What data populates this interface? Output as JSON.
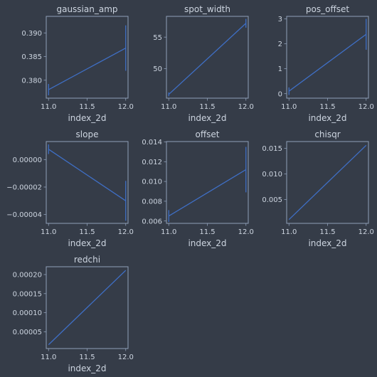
{
  "figure": {
    "background": "#353c48",
    "axes_face": "#353c48",
    "axes_edge": "#8f9fb7",
    "text_color": "#cdd5e0",
    "line_color": "#3f6fc5"
  },
  "chart_data": [
    {
      "type": "line",
      "title": "gaussian_amp",
      "xlabel": "index_2d",
      "ylabel": "",
      "xlim": [
        10.97,
        12.03
      ],
      "ylim": [
        0.3762,
        0.3935
      ],
      "xticks": [
        11.0,
        11.5,
        12.0
      ],
      "xtick_labels": [
        "11.0",
        "11.5",
        "12.0"
      ],
      "yticks": [
        0.38,
        0.385,
        0.39
      ],
      "ytick_labels": [
        "0.380",
        "0.385",
        "0.390"
      ],
      "series": [
        {
          "x": [
            11.0,
            12.0
          ],
          "y": [
            0.378,
            0.3868
          ],
          "yerr": [
            0.0012,
            0.0048
          ]
        }
      ]
    },
    {
      "type": "line",
      "title": "spot_width",
      "xlabel": "index_2d",
      "ylabel": "",
      "xlim": [
        10.97,
        12.03
      ],
      "ylim": [
        45.3,
        58.3
      ],
      "xticks": [
        11.0,
        11.5,
        12.0
      ],
      "xtick_labels": [
        "11.0",
        "11.5",
        "12.0"
      ],
      "yticks": [
        50,
        55
      ],
      "ytick_labels": [
        "50",
        "55"
      ],
      "series": [
        {
          "x": [
            11.0,
            12.0
          ],
          "y": [
            45.9,
            57.2
          ],
          "yerr": [
            0.3,
            0.7
          ]
        }
      ]
    },
    {
      "type": "line",
      "title": "pos_offset",
      "xlabel": "index_2d",
      "ylabel": "",
      "xlim": [
        10.97,
        12.03
      ],
      "ylim": [
        -0.18,
        3.1
      ],
      "xticks": [
        11.0,
        11.5,
        12.0
      ],
      "xtick_labels": [
        "11.0",
        "11.5",
        "12.0"
      ],
      "yticks": [
        0,
        1,
        2,
        3
      ],
      "ytick_labels": [
        "0",
        "1",
        "2",
        "3"
      ],
      "series": [
        {
          "x": [
            11.0,
            12.0
          ],
          "y": [
            0.1,
            2.38
          ],
          "yerr": [
            0.15,
            0.62
          ]
        }
      ]
    },
    {
      "type": "line",
      "title": "slope",
      "xlabel": "index_2d",
      "ylabel": "",
      "xlim": [
        10.97,
        12.03
      ],
      "ylim": [
        -4.64e-05,
        1.31e-05
      ],
      "xticks": [
        11.0,
        11.5,
        12.0
      ],
      "xtick_labels": [
        "11.0",
        "11.5",
        "12.0"
      ],
      "yticks": [
        -4e-05,
        -2e-05,
        0.0
      ],
      "ytick_labels": [
        "−0.00004",
        "−0.00002",
        "0.00000"
      ],
      "series": [
        {
          "x": [
            11.0,
            12.0
          ],
          "y": [
            7.5e-06,
            -3e-05
          ],
          "yerr": [
            3.5e-06,
            1.45e-05
          ]
        }
      ]
    },
    {
      "type": "line",
      "title": "offset",
      "xlabel": "index_2d",
      "ylabel": "",
      "xlim": [
        10.97,
        12.03
      ],
      "ylim": [
        0.00576,
        0.01404
      ],
      "xticks": [
        11.0,
        11.5,
        12.0
      ],
      "xtick_labels": [
        "11.0",
        "11.5",
        "12.0"
      ],
      "yticks": [
        0.006,
        0.008,
        0.01,
        0.012,
        0.014
      ],
      "ytick_labels": [
        "0.006",
        "0.008",
        "0.010",
        "0.012",
        "0.014"
      ],
      "series": [
        {
          "x": [
            11.0,
            12.0
          ],
          "y": [
            0.0065,
            0.0112
          ],
          "yerr": [
            0.0006,
            0.0023
          ]
        }
      ]
    },
    {
      "type": "line",
      "title": "chisqr",
      "xlabel": "index_2d",
      "ylabel": "",
      "xlim": [
        10.97,
        12.03
      ],
      "ylim": [
        0.00036,
        0.01634
      ],
      "xticks": [
        11.0,
        11.5,
        12.0
      ],
      "xtick_labels": [
        "11.0",
        "11.5",
        "12.0"
      ],
      "yticks": [
        0.005,
        0.01,
        0.015
      ],
      "ytick_labels": [
        "0.005",
        "0.010",
        "0.015"
      ],
      "series": [
        {
          "x": [
            11.0,
            12.0
          ],
          "y": [
            0.0011,
            0.0156
          ]
        }
      ]
    },
    {
      "type": "line",
      "title": "redchi",
      "xlabel": "index_2d",
      "ylabel": "",
      "xlim": [
        10.97,
        12.03
      ],
      "ylim": [
        5.9e-06,
        0.0002205
      ],
      "xticks": [
        11.0,
        11.5,
        12.0
      ],
      "xtick_labels": [
        "11.0",
        "11.5",
        "12.0"
      ],
      "yticks": [
        5e-05,
        0.0001,
        0.00015,
        0.0002
      ],
      "ytick_labels": [
        "0.00005",
        "0.00010",
        "0.00015",
        "0.00020"
      ],
      "series": [
        {
          "x": [
            11.0,
            12.0
          ],
          "y": [
            1.59e-05,
            0.000211
          ]
        }
      ]
    }
  ]
}
